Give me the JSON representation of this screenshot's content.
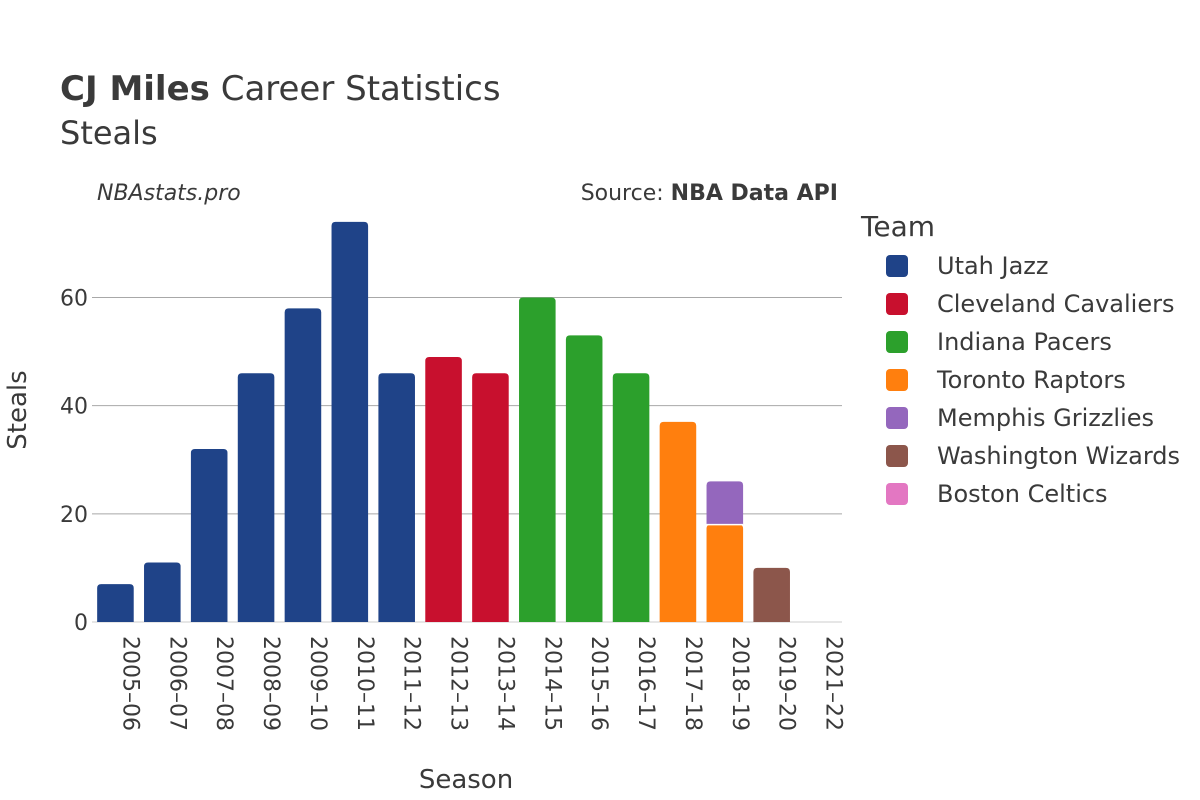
{
  "header": {
    "title_bold": "CJ Miles",
    "title_rest": " Career Statistics",
    "subtitle": "Steals",
    "site": "NBAstats.pro",
    "source_prefix": "Source: ",
    "source_name": "NBA Data API"
  },
  "chart_data": {
    "type": "bar",
    "stacked": true,
    "categories": [
      "2005–06",
      "2006–07",
      "2007–08",
      "2008–09",
      "2009–10",
      "2010–11",
      "2011–12",
      "2012–13",
      "2013–14",
      "2014–15",
      "2015–16",
      "2016–17",
      "2017–18",
      "2018–19",
      "2019–20",
      "2021–22"
    ],
    "series": [
      {
        "name": "Utah Jazz",
        "color": "#1f4388",
        "values": [
          7,
          11,
          32,
          46,
          58,
          74,
          46,
          0,
          0,
          0,
          0,
          0,
          0,
          0,
          0,
          0
        ]
      },
      {
        "name": "Cleveland Cavaliers",
        "color": "#c8102e",
        "values": [
          0,
          0,
          0,
          0,
          0,
          0,
          0,
          49,
          46,
          0,
          0,
          0,
          0,
          0,
          0,
          0
        ]
      },
      {
        "name": "Indiana Pacers",
        "color": "#2ca02c",
        "values": [
          0,
          0,
          0,
          0,
          0,
          0,
          0,
          0,
          0,
          60,
          53,
          46,
          0,
          0,
          0,
          0
        ]
      },
      {
        "name": "Toronto Raptors",
        "color": "#ff7f0e",
        "values": [
          0,
          0,
          0,
          0,
          0,
          0,
          0,
          0,
          0,
          0,
          0,
          0,
          37,
          18,
          0,
          0
        ]
      },
      {
        "name": "Memphis Grizzlies",
        "color": "#9467bd",
        "values": [
          0,
          0,
          0,
          0,
          0,
          0,
          0,
          0,
          0,
          0,
          0,
          0,
          0,
          8,
          0,
          0
        ]
      },
      {
        "name": "Washington Wizards",
        "color": "#8c564b",
        "values": [
          0,
          0,
          0,
          0,
          0,
          0,
          0,
          0,
          0,
          0,
          0,
          0,
          0,
          0,
          10,
          0
        ]
      },
      {
        "name": "Boston Celtics",
        "color": "#e377c2",
        "values": [
          0,
          0,
          0,
          0,
          0,
          0,
          0,
          0,
          0,
          0,
          0,
          0,
          0,
          0,
          0,
          0
        ]
      }
    ],
    "xlabel": "Season",
    "ylabel": "Steals",
    "ylim": [
      0,
      76
    ],
    "yticks": [
      0,
      20,
      40,
      60
    ],
    "grid": true,
    "legend_title": "Team",
    "legend_position": "right"
  }
}
